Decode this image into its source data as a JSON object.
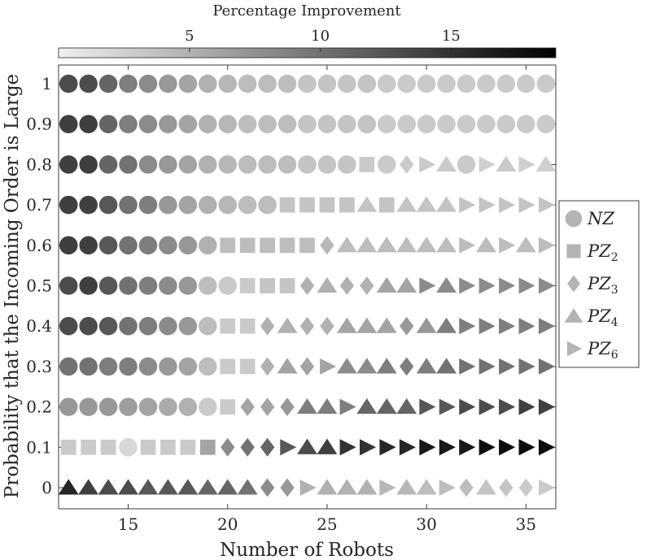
{
  "chart_data": {
    "type": "scatter",
    "xlabel": "Number of Robots",
    "ylabel": "Probability that the Incoming Order is Large",
    "xlim": [
      11.5,
      36.5
    ],
    "x_ticks": [
      "15",
      "20",
      "25",
      "30",
      "35"
    ],
    "x_tick_values": [
      15,
      20,
      25,
      30,
      35
    ],
    "y_ticks": [
      "0",
      "0.1",
      "0.2",
      "0.3",
      "0.4",
      "0.5",
      "0.6",
      "0.7",
      "0.8",
      "0.9",
      "1"
    ],
    "y_tick_values": [
      0,
      0.1,
      0.2,
      0.3,
      0.4,
      0.5,
      0.6,
      0.7,
      0.8,
      0.9,
      1
    ],
    "colorbar": {
      "title": "Percentage Improvement",
      "range": [
        0,
        19
      ],
      "ticks": [
        "5",
        "10",
        "15"
      ],
      "tick_values": [
        5,
        10,
        15
      ],
      "colormap": "gray-reversed",
      "placement": "top"
    },
    "legend": {
      "placement": "right",
      "entries": [
        {
          "key": "NZ",
          "base": "NZ",
          "sub": "",
          "marker": "circle"
        },
        {
          "key": "PZ2",
          "base": "PZ",
          "sub": "2",
          "marker": "square"
        },
        {
          "key": "PZ3",
          "base": "PZ",
          "sub": "3",
          "marker": "diamond"
        },
        {
          "key": "PZ4",
          "base": "PZ",
          "sub": "4",
          "marker": "triangle-up"
        },
        {
          "key": "PZ6",
          "base": "PZ",
          "sub": "6",
          "marker": "triangle-right"
        }
      ]
    },
    "x_values": [
      12,
      13,
      14,
      15,
      16,
      17,
      18,
      19,
      20,
      21,
      22,
      23,
      24,
      25,
      26,
      27,
      28,
      29,
      30,
      31,
      32,
      33,
      34,
      35,
      36
    ],
    "rows": [
      {
        "p": 1.0,
        "markers": [
          "NZ",
          "NZ",
          "NZ",
          "NZ",
          "NZ",
          "NZ",
          "NZ",
          "NZ",
          "NZ",
          "NZ",
          "NZ",
          "NZ",
          "NZ",
          "NZ",
          "NZ",
          "NZ",
          "NZ",
          "NZ",
          "NZ",
          "NZ",
          "NZ",
          "NZ",
          "NZ",
          "NZ",
          "NZ"
        ],
        "improvement": [
          13,
          13,
          11,
          9,
          8,
          7,
          6,
          5,
          4.5,
          4,
          4,
          4,
          3.5,
          3.5,
          3.5,
          3.5,
          3,
          3,
          3,
          3,
          3,
          3,
          3,
          3,
          3
        ]
      },
      {
        "p": 0.9,
        "markers": [
          "NZ",
          "NZ",
          "NZ",
          "NZ",
          "NZ",
          "NZ",
          "NZ",
          "NZ",
          "NZ",
          "NZ",
          "NZ",
          "NZ",
          "NZ",
          "NZ",
          "NZ",
          "NZ",
          "NZ",
          "NZ",
          "NZ",
          "NZ",
          "NZ",
          "NZ",
          "NZ",
          "NZ",
          "NZ"
        ],
        "improvement": [
          14,
          14,
          11,
          9,
          8,
          7,
          6,
          5,
          4.5,
          4,
          4,
          4,
          3.5,
          3.5,
          3.5,
          3.5,
          3,
          3,
          3,
          3,
          3,
          3,
          3,
          3,
          3
        ]
      },
      {
        "p": 0.8,
        "markers": [
          "NZ",
          "NZ",
          "NZ",
          "NZ",
          "NZ",
          "NZ",
          "NZ",
          "NZ",
          "NZ",
          "NZ",
          "NZ",
          "NZ",
          "NZ",
          "NZ",
          "NZ",
          "PZ2",
          "NZ",
          "PZ3",
          "PZ6",
          "PZ4",
          "NZ",
          "PZ6",
          "PZ4",
          "PZ6",
          "PZ4"
        ],
        "improvement": [
          14,
          14,
          11,
          10,
          8,
          7,
          6,
          5,
          4.5,
          4,
          4,
          4,
          3.5,
          3.5,
          3.5,
          3,
          3,
          3,
          3,
          3,
          3,
          2.5,
          3,
          2.5,
          2.5
        ]
      },
      {
        "p": 0.7,
        "markers": [
          "NZ",
          "NZ",
          "NZ",
          "NZ",
          "NZ",
          "NZ",
          "NZ",
          "NZ",
          "NZ",
          "NZ",
          "NZ",
          "PZ2",
          "PZ2",
          "PZ2",
          "PZ2",
          "PZ4",
          "PZ2",
          "PZ4",
          "PZ4",
          "PZ4",
          "PZ6",
          "PZ6",
          "PZ6",
          "PZ6",
          "PZ6"
        ],
        "improvement": [
          14,
          14,
          12,
          10,
          9,
          7,
          6,
          5,
          4.5,
          4,
          4,
          3.5,
          3.5,
          3.5,
          3.5,
          3.5,
          3.5,
          3.5,
          3.5,
          3.5,
          3.5,
          3.5,
          3.5,
          3.5,
          3.5
        ]
      },
      {
        "p": 0.6,
        "markers": [
          "NZ",
          "NZ",
          "NZ",
          "NZ",
          "NZ",
          "NZ",
          "NZ",
          "NZ",
          "PZ2",
          "PZ2",
          "PZ2",
          "PZ2",
          "PZ2",
          "PZ3",
          "PZ4",
          "PZ4",
          "PZ4",
          "PZ4",
          "PZ4",
          "PZ4",
          "PZ6",
          "PZ4",
          "PZ6",
          "PZ4",
          "PZ6"
        ],
        "improvement": [
          14,
          14,
          12,
          10,
          9,
          8,
          7,
          5,
          4,
          4,
          4,
          4,
          4,
          4.5,
          4,
          4,
          4,
          4,
          4,
          4,
          4,
          4,
          4,
          4,
          4
        ]
      },
      {
        "p": 0.5,
        "markers": [
          "NZ",
          "NZ",
          "NZ",
          "NZ",
          "NZ",
          "NZ",
          "NZ",
          "NZ",
          "NZ",
          "PZ2",
          "PZ2",
          "PZ2",
          "PZ3",
          "PZ4",
          "PZ3",
          "PZ3",
          "PZ4",
          "PZ4",
          "PZ6",
          "PZ4",
          "PZ6",
          "PZ6",
          "PZ6",
          "PZ6",
          "PZ6"
        ],
        "improvement": [
          13,
          14,
          12,
          10,
          9,
          8,
          7,
          4,
          3,
          3,
          3.5,
          3.5,
          5,
          5,
          5,
          5,
          6,
          6,
          8,
          8,
          8,
          8,
          8,
          8,
          8
        ]
      },
      {
        "p": 0.4,
        "markers": [
          "NZ",
          "NZ",
          "NZ",
          "NZ",
          "NZ",
          "NZ",
          "NZ",
          "NZ",
          "PZ2",
          "PZ2",
          "PZ3",
          "PZ4",
          "PZ3",
          "PZ3",
          "PZ4",
          "PZ4",
          "PZ4",
          "PZ3",
          "PZ4",
          "PZ4",
          "PZ6",
          "PZ6",
          "PZ6",
          "PZ6",
          "PZ6"
        ],
        "improvement": [
          13,
          13,
          12,
          10,
          9,
          8,
          7,
          4,
          3,
          3,
          5,
          5,
          5,
          5,
          6,
          6,
          6,
          7,
          7,
          9,
          9,
          9,
          9,
          9,
          9
        ]
      },
      {
        "p": 0.3,
        "markers": [
          "NZ",
          "NZ",
          "NZ",
          "NZ",
          "NZ",
          "NZ",
          "NZ",
          "NZ",
          "PZ2",
          "PZ2",
          "PZ3",
          "PZ4",
          "PZ3",
          "PZ6",
          "PZ4",
          "PZ4",
          "PZ4",
          "PZ3",
          "PZ4",
          "PZ4",
          "PZ6",
          "PZ6",
          "PZ6",
          "PZ6",
          "PZ6"
        ],
        "improvement": [
          10,
          10,
          9,
          9,
          8,
          7,
          6,
          4,
          3,
          3,
          5,
          6,
          6,
          6,
          8,
          8,
          9,
          9,
          9,
          10,
          10,
          10,
          10,
          10,
          10
        ]
      },
      {
        "p": 0.2,
        "markers": [
          "NZ",
          "NZ",
          "NZ",
          "NZ",
          "NZ",
          "NZ",
          "NZ",
          "NZ",
          "PZ2",
          "PZ3",
          "PZ3",
          "PZ3",
          "PZ4",
          "PZ4",
          "PZ6",
          "PZ4",
          "PZ4",
          "PZ4",
          "PZ6",
          "PZ6",
          "PZ6",
          "PZ6",
          "PZ6",
          "PZ6",
          "PZ6"
        ],
        "improvement": [
          7,
          7,
          7,
          6.5,
          6,
          5.5,
          5,
          3,
          3,
          6,
          6,
          7,
          9,
          9,
          9,
          11,
          11,
          11,
          12,
          12,
          13,
          13,
          13,
          14,
          14
        ]
      },
      {
        "p": 0.1,
        "markers": [
          "PZ2",
          "PZ2",
          "PZ2",
          "NZ",
          "PZ2",
          "PZ2",
          "PZ2",
          "PZ2",
          "PZ3",
          "PZ3",
          "PZ3",
          "PZ6",
          "PZ4",
          "PZ4",
          "PZ6",
          "PZ6",
          "PZ6",
          "PZ6",
          "PZ6",
          "PZ6",
          "PZ6",
          "PZ6",
          "PZ6",
          "PZ6",
          "PZ6"
        ],
        "improvement": [
          3,
          3,
          3,
          2,
          3,
          3,
          3,
          6,
          8,
          10,
          11,
          12,
          13,
          14,
          15,
          15,
          16,
          16,
          17,
          17,
          17,
          18,
          18,
          18,
          18
        ]
      },
      {
        "p": 0.0,
        "markers": [
          "PZ4",
          "PZ4",
          "PZ4",
          "PZ4",
          "PZ4",
          "PZ4",
          "PZ4",
          "PZ4",
          "PZ4",
          "PZ4",
          "PZ3",
          "PZ3",
          "PZ6",
          "PZ4",
          "PZ4",
          "PZ4",
          "PZ6",
          "PZ4",
          "PZ4",
          "PZ6",
          "PZ3",
          "PZ4",
          "PZ3",
          "PZ3",
          "PZ6"
        ],
        "improvement": [
          16,
          14,
          13,
          13,
          12,
          12,
          12,
          11,
          11,
          10,
          8,
          7,
          5,
          5,
          5,
          5,
          4.5,
          4.5,
          4,
          4,
          4,
          3.5,
          3.5,
          3,
          3
        ]
      }
    ]
  }
}
